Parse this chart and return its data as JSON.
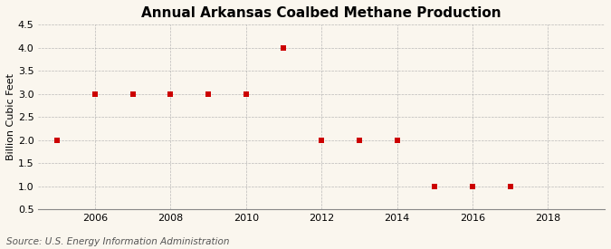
{
  "title": "Annual Arkansas Coalbed Methane Production",
  "ylabel": "Billion Cubic Feet",
  "source": "Source: U.S. Energy Information Administration",
  "years": [
    2005,
    2006,
    2007,
    2008,
    2009,
    2010,
    2011,
    2012,
    2013,
    2014,
    2015,
    2016,
    2017
  ],
  "values": [
    2.0,
    3.0,
    3.0,
    3.0,
    3.0,
    3.0,
    4.0,
    2.0,
    2.0,
    2.0,
    1.0,
    1.0,
    1.0
  ],
  "marker_color": "#cc0000",
  "marker": "s",
  "marker_size": 4,
  "xlim": [
    2004.5,
    2019.5
  ],
  "ylim": [
    0.5,
    4.5
  ],
  "yticks": [
    0.5,
    1.0,
    1.5,
    2.0,
    2.5,
    3.0,
    3.5,
    4.0,
    4.5
  ],
  "xticks": [
    2006,
    2008,
    2010,
    2012,
    2014,
    2016,
    2018
  ],
  "grid_color": "#aaaaaa",
  "bg_color": "#faf6ee",
  "title_fontsize": 11,
  "label_fontsize": 8,
  "source_fontsize": 7.5
}
